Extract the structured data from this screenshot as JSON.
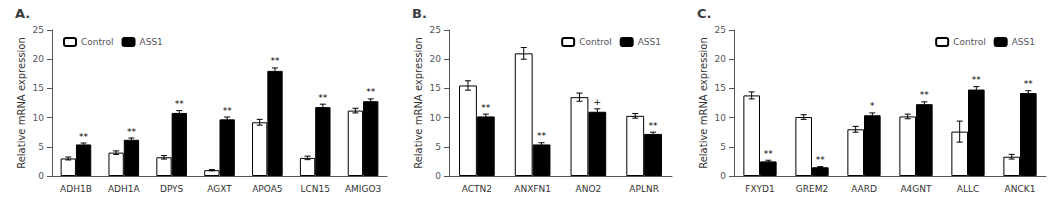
{
  "chart_data": [
    {
      "type": "bar",
      "title": "A.",
      "categories": [
        "ADH1B",
        "ADH1A",
        "DPYS",
        "AGXT",
        "APOA5",
        "LCN15",
        "AMIGO3"
      ],
      "ylabel": "Relative mRNA expression",
      "ylim": [
        0,
        25
      ],
      "yticks": [
        0,
        5,
        10,
        15,
        20,
        25
      ],
      "grid": false,
      "legend": "upper left",
      "series": [
        {
          "name": "Control",
          "color": "white",
          "values": [
            3.0,
            4.0,
            3.2,
            1.0,
            9.2,
            3.1,
            11.2
          ],
          "errors": [
            0.25,
            0.3,
            0.3,
            0.1,
            0.5,
            0.3,
            0.4
          ]
        },
        {
          "name": "ASS1",
          "color": "black",
          "values": [
            5.4,
            6.2,
            10.8,
            9.7,
            18.0,
            11.8,
            12.8
          ],
          "errors": [
            0.25,
            0.3,
            0.4,
            0.4,
            0.5,
            0.5,
            0.4
          ],
          "significance": [
            "**",
            "**",
            "**",
            "**",
            "**",
            "**",
            "**"
          ]
        }
      ]
    },
    {
      "type": "bar",
      "title": "B.",
      "categories": [
        "ACTN2",
        "ANXFN1",
        "ANO2",
        "APLNR"
      ],
      "ylabel": "Relative mRNA expression",
      "ylim": [
        0,
        25
      ],
      "yticks": [
        0,
        5,
        10,
        15,
        20,
        25
      ],
      "grid": false,
      "legend": "upper right",
      "series": [
        {
          "name": "Control",
          "color": "white",
          "values": [
            15.5,
            21.0,
            13.5,
            10.3
          ],
          "errors": [
            0.8,
            1.0,
            0.7,
            0.4
          ]
        },
        {
          "name": "ASS1",
          "color": "black",
          "values": [
            10.2,
            5.4,
            11.0,
            7.2
          ],
          "errors": [
            0.4,
            0.3,
            0.5,
            0.3
          ],
          "significance": [
            "**",
            "**",
            "+",
            "**"
          ]
        }
      ]
    },
    {
      "type": "bar",
      "title": "C.",
      "categories": [
        "FXYD1",
        "GREM2",
        "AARD",
        "A4GNT",
        "ALLC",
        "ANCK1"
      ],
      "ylabel": "Relative mRNA expression",
      "ylim": [
        0,
        25
      ],
      "yticks": [
        0,
        5,
        10,
        15,
        20,
        25
      ],
      "grid": false,
      "legend": "upper right",
      "series": [
        {
          "name": "Control",
          "color": "white",
          "values": [
            13.8,
            10.1,
            8.0,
            10.2,
            7.6,
            3.3
          ],
          "errors": [
            0.6,
            0.4,
            0.5,
            0.4,
            1.8,
            0.4
          ]
        },
        {
          "name": "ASS1",
          "color": "black",
          "values": [
            2.5,
            1.5,
            10.4,
            12.3,
            14.8,
            14.2
          ],
          "errors": [
            0.2,
            0.1,
            0.4,
            0.4,
            0.5,
            0.4
          ],
          "significance": [
            "**",
            "**",
            "*",
            "**",
            "**",
            "**"
          ]
        }
      ]
    }
  ]
}
